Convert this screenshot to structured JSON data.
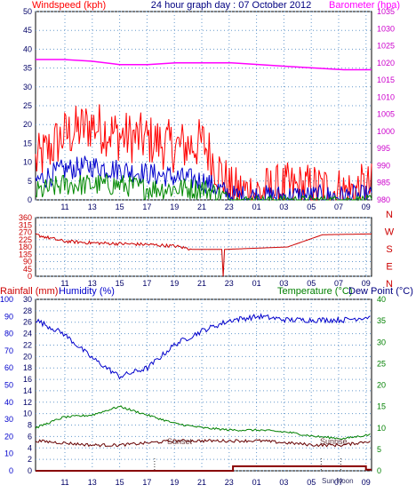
{
  "header": {
    "wind_label": "Windspeed (kph)",
    "title": "24 hour graph day : 07 October 2012",
    "baro_label": "Barometer (hpa)"
  },
  "panel3_header": {
    "rain_label": "Rainfall (mm)",
    "humidity_label": "Humidity (%)",
    "temp_label": "Temperature (°C)",
    "dew_label": "Dew Point (°C)"
  },
  "colors": {
    "wind_gust": "#ff0000",
    "wind_avg": "#0000cc",
    "wind_low": "#008800",
    "barometer": "#ff00ff",
    "direction": "#cc0000",
    "humidity": "#0000cc",
    "temperature": "#008000",
    "dewpoint": "#660000",
    "rainfall": "#880000"
  },
  "chart_data": [
    {
      "type": "line",
      "panel": "wind_barometer",
      "title": "24 hour graph day : 07 October 2012",
      "x_ticks": [
        "11",
        "13",
        "15",
        "17",
        "19",
        "21",
        "23",
        "01",
        "03",
        "05",
        "07",
        "09"
      ],
      "y_left": {
        "label": "Windspeed (kph)",
        "ticks": [
          0,
          5,
          10,
          15,
          20,
          25,
          30,
          35,
          40,
          45,
          50
        ],
        "lim": [
          0,
          50
        ]
      },
      "y_right": {
        "label": "Barometer (hpa)",
        "ticks": [
          980,
          985,
          990,
          995,
          1000,
          1005,
          1010,
          1015,
          1020,
          1025,
          1030,
          1035
        ],
        "lim": [
          980,
          1035
        ]
      },
      "x_hours_from_start": [
        0,
        2,
        4,
        6,
        8,
        10,
        12,
        14,
        16,
        18,
        20,
        22,
        24
      ],
      "series": [
        {
          "role": "gust",
          "values": [
            10,
            17,
            20,
            17,
            16,
            14,
            15,
            2,
            2,
            3,
            3,
            2,
            3
          ]
        },
        {
          "role": "average",
          "values": [
            5,
            8,
            9,
            8,
            7,
            6,
            5,
            1,
            1,
            1,
            1,
            1,
            1
          ]
        },
        {
          "role": "low",
          "values": [
            2,
            4,
            4,
            4,
            3,
            3,
            3,
            0,
            0,
            0,
            0,
            0,
            0
          ]
        },
        {
          "role": "barometer",
          "values": [
            1021,
            1021,
            1020.5,
            1019.5,
            1019.5,
            1020,
            1020,
            1020,
            1019.5,
            1019,
            1018.5,
            1018,
            1018
          ]
        }
      ]
    },
    {
      "type": "line",
      "panel": "wind_direction",
      "x_ticks": [
        "11",
        "13",
        "15",
        "17",
        "19",
        "21",
        "23",
        "01",
        "03",
        "05",
        "07",
        "09"
      ],
      "y_left": {
        "ticks": [
          0,
          45,
          90,
          135,
          180,
          225,
          270,
          315,
          360
        ],
        "lim": [
          0,
          360
        ]
      },
      "y_right_labels": [
        "N",
        "W",
        "S",
        "E",
        "N"
      ],
      "x_hours_from_start": [
        0,
        2,
        4,
        6,
        8,
        10,
        11.2,
        13.3,
        13.4,
        13.5,
        13.6,
        18,
        20.5,
        24
      ],
      "series": [
        {
          "role": "direction",
          "values": [
            255,
            215,
            205,
            200,
            195,
            185,
            165,
            165,
            0,
            165,
            165,
            180,
            255,
            260
          ]
        }
      ]
    },
    {
      "type": "line",
      "panel": "temp_humidity_rain",
      "x_ticks": [
        "11",
        "13",
        "15",
        "17",
        "19",
        "21",
        "23",
        "01",
        "03",
        "05",
        "07",
        "09"
      ],
      "y_rain_ticks": [
        0,
        2,
        4,
        6,
        8,
        10,
        12,
        14,
        16,
        18,
        20,
        22,
        24,
        26,
        28,
        30
      ],
      "y_humidity_ticks": [
        0,
        10,
        20,
        30,
        40,
        50,
        60,
        70,
        80,
        90,
        100
      ],
      "y_temp_ticks": [
        0,
        5,
        10,
        15,
        20,
        25,
        30,
        35,
        40
      ],
      "lim": {
        "rain": [
          0,
          30
        ],
        "humidity": [
          0,
          100
        ],
        "temp": [
          0,
          40
        ]
      },
      "annotations": [
        "Sunset",
        "Sunrise",
        "Sun Noon"
      ],
      "x_hours_from_start": [
        0,
        2,
        4,
        6,
        8,
        10,
        12,
        14,
        16,
        18,
        20,
        22,
        24
      ],
      "series": [
        {
          "role": "humidity",
          "values": [
            88,
            80,
            66,
            55,
            60,
            74,
            82,
            88,
            90,
            88,
            88,
            88,
            90
          ]
        },
        {
          "role": "temperature",
          "values": [
            10,
            12.5,
            13,
            15,
            13,
            11,
            10,
            9.5,
            9.5,
            9,
            8,
            7.5,
            8.5
          ]
        },
        {
          "role": "dewpoint",
          "values": [
            7,
            6.5,
            6,
            6,
            6.5,
            7,
            7,
            7,
            7,
            6.5,
            6,
            6,
            7
          ]
        },
        {
          "role": "rainfall",
          "values": [
            0,
            0,
            0,
            0,
            0,
            0,
            0,
            0,
            0.8,
            0.8,
            0.8,
            0.8,
            0.2
          ]
        }
      ]
    }
  ]
}
